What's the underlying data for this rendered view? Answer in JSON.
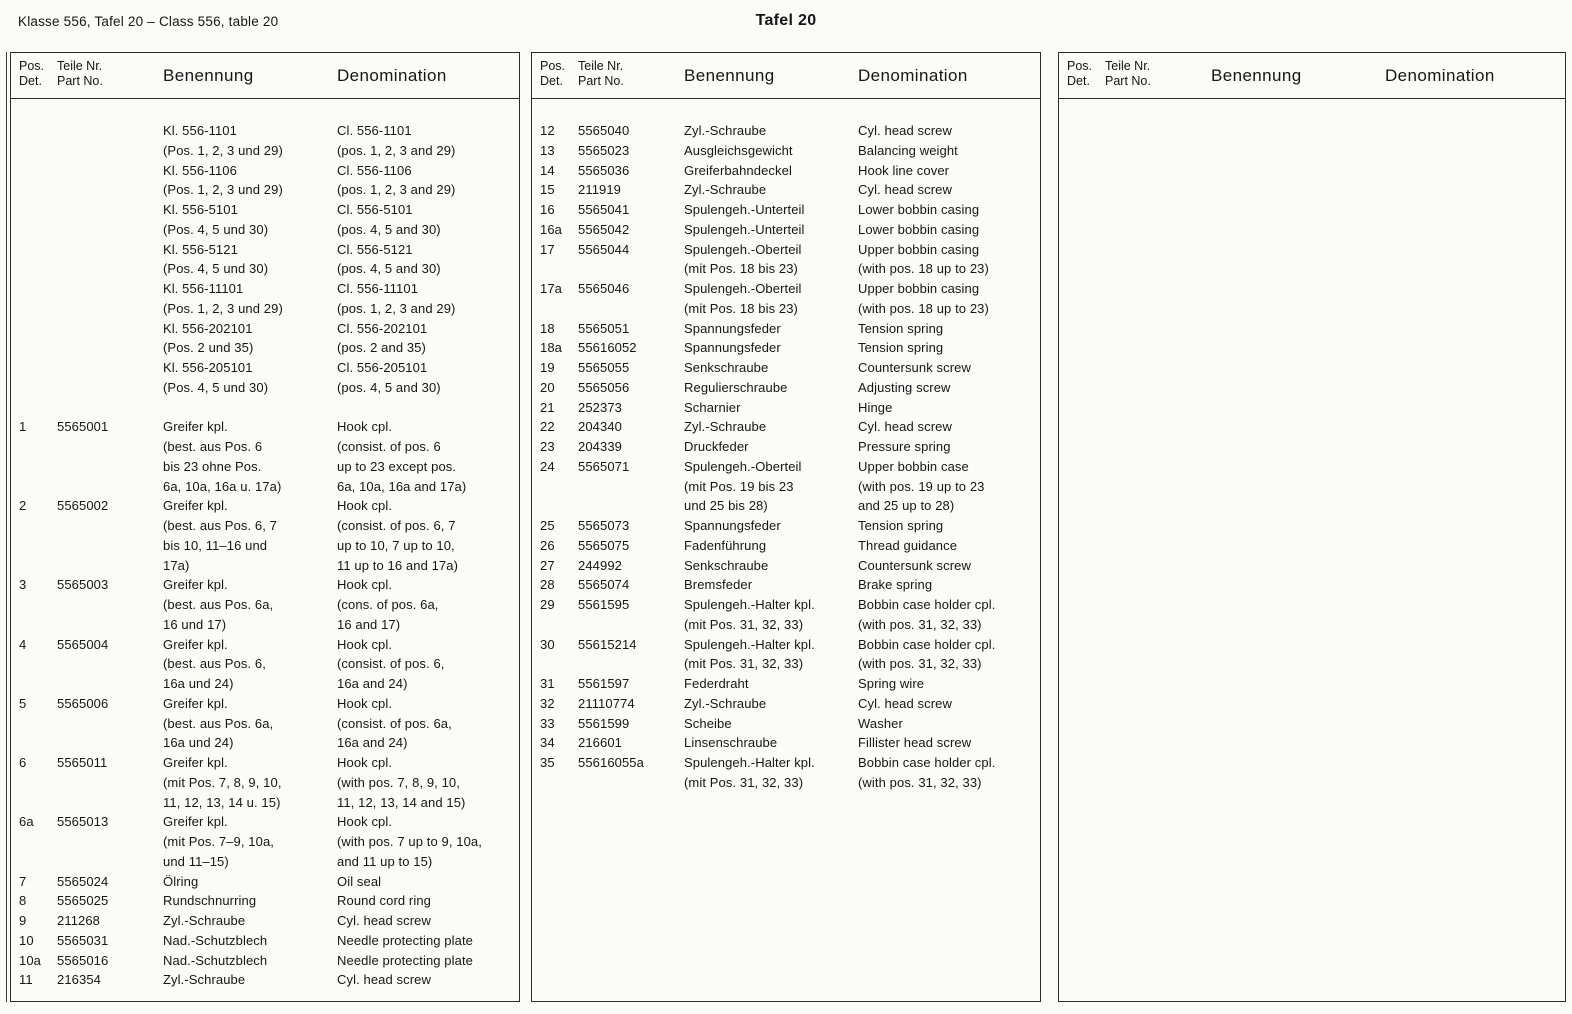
{
  "page": {
    "header_left": "Klasse 556, Tafel 20 – Class 556, table 20",
    "title": "Tafel 20"
  },
  "column_headers": {
    "pos": [
      "Pos.",
      "Det."
    ],
    "part": [
      "Teile Nr.",
      "Part No."
    ],
    "benennung": "Benennung",
    "denomination": "Denomination"
  },
  "panels": [
    {
      "rows": [
        [
          "",
          "",
          "Kl. 556-1101",
          "Cl. 556-1101"
        ],
        [
          "",
          "",
          "(Pos. 1, 2, 3 und 29)",
          "(pos. 1, 2, 3 and 29)"
        ],
        [
          "",
          "",
          "Kl. 556-1106",
          "Cl. 556-1106"
        ],
        [
          "",
          "",
          "(Pos. 1, 2, 3 und 29)",
          "(pos. 1, 2, 3 and 29)"
        ],
        [
          "",
          "",
          "Kl. 556-5101",
          "Cl. 556-5101"
        ],
        [
          "",
          "",
          "(Pos. 4, 5 und 30)",
          "(pos. 4, 5 and 30)"
        ],
        [
          "",
          "",
          "Kl. 556-5121",
          "Cl. 556-5121"
        ],
        [
          "",
          "",
          "(Pos. 4, 5 und 30)",
          "(pos. 4, 5 and 30)"
        ],
        [
          "",
          "",
          "Kl. 556-11101",
          "Cl. 556-11101"
        ],
        [
          "",
          "",
          "(Pos. 1, 2, 3 und 29)",
          "(pos. 1, 2, 3 and 29)"
        ],
        [
          "",
          "",
          "Kl. 556-202101",
          "Cl. 556-202101"
        ],
        [
          "",
          "",
          "(Pos. 2 und 35)",
          "(pos. 2 and 35)"
        ],
        [
          "",
          "",
          "Kl. 556-205101",
          "Cl. 556-205101"
        ],
        [
          "",
          "",
          "(Pos. 4, 5 und 30)",
          "(pos. 4, 5 and 30)"
        ],
        [
          "",
          "",
          "",
          ""
        ],
        [
          "1",
          "5565001",
          "Greifer kpl.",
          "Hook cpl."
        ],
        [
          "",
          "",
          "(best. aus Pos. 6",
          "(consist. of pos. 6"
        ],
        [
          "",
          "",
          "bis 23 ohne Pos.",
          "up to 23 except pos."
        ],
        [
          "",
          "",
          "6a, 10a, 16a u. 17a)",
          "6a, 10a, 16a and 17a)"
        ],
        [
          "2",
          "5565002",
          "Greifer kpl.",
          "Hook cpl."
        ],
        [
          "",
          "",
          "(best. aus Pos. 6, 7",
          "(consist. of pos. 6, 7"
        ],
        [
          "",
          "",
          "bis 10, 11–16 und",
          "up to 10, 7 up to 10,"
        ],
        [
          "",
          "",
          "17a)",
          "11 up to 16 and 17a)"
        ],
        [
          "3",
          "5565003",
          "Greifer kpl.",
          "Hook cpl."
        ],
        [
          "",
          "",
          "(best. aus Pos. 6a,",
          "(cons. of pos. 6a,"
        ],
        [
          "",
          "",
          "16 und 17)",
          "16 and 17)"
        ],
        [
          "4",
          "5565004",
          "Greifer kpl.",
          "Hook cpl."
        ],
        [
          "",
          "",
          "(best. aus Pos. 6,",
          "(consist. of pos. 6,"
        ],
        [
          "",
          "",
          "16a und 24)",
          "16a and 24)"
        ],
        [
          "5",
          "5565006",
          "Greifer kpl.",
          "Hook cpl."
        ],
        [
          "",
          "",
          "(best. aus Pos. 6a,",
          "(consist. of pos. 6a,"
        ],
        [
          "",
          "",
          "16a und 24)",
          "16a and 24)"
        ],
        [
          "6",
          "5565011",
          "Greifer kpl.",
          "Hook cpl."
        ],
        [
          "",
          "",
          "(mit Pos. 7, 8, 9, 10,",
          "(with pos. 7, 8, 9, 10,"
        ],
        [
          "",
          "",
          "11, 12, 13, 14 u. 15)",
          "11, 12, 13, 14 and 15)"
        ],
        [
          "6a",
          "5565013",
          "Greifer kpl.",
          "Hook cpl."
        ],
        [
          "",
          "",
          "(mit Pos. 7–9, 10a,",
          "(with pos. 7 up to 9, 10a,"
        ],
        [
          "",
          "",
          "und 11–15)",
          "and 11 up to 15)"
        ],
        [
          "7",
          "5565024",
          "Ölring",
          "Oil seal"
        ],
        [
          "8",
          "5565025",
          "Rundschnurring",
          "Round cord ring"
        ],
        [
          "9",
          "211268",
          "Zyl.-Schraube",
          "Cyl. head screw"
        ],
        [
          "10",
          "5565031",
          "Nad.-Schutzblech",
          "Needle protecting plate"
        ],
        [
          "10a",
          "5565016",
          "Nad.-Schutzblech",
          "Needle protecting plate"
        ],
        [
          "11",
          "216354",
          "Zyl.-Schraube",
          "Cyl. head screw"
        ]
      ]
    },
    {
      "rows": [
        [
          "12",
          "5565040",
          "Zyl.-Schraube",
          "Cyl. head screw"
        ],
        [
          "13",
          "5565023",
          "Ausgleichsgewicht",
          "Balancing weight"
        ],
        [
          "14",
          "5565036",
          "Greiferbahndeckel",
          "Hook line cover"
        ],
        [
          "15",
          "211919",
          "Zyl.-Schraube",
          "Cyl. head screw"
        ],
        [
          "16",
          "5565041",
          "Spulengeh.-Unterteil",
          "Lower bobbin casing"
        ],
        [
          "16a",
          "5565042",
          "Spulengeh.-Unterteil",
          "Lower bobbin casing"
        ],
        [
          "17",
          "5565044",
          "Spulengeh.-Oberteil",
          "Upper bobbin casing"
        ],
        [
          "",
          "",
          "(mit Pos. 18 bis 23)",
          "(with pos. 18 up to 23)"
        ],
        [
          "17a",
          "5565046",
          "Spulengeh.-Oberteil",
          "Upper bobbin casing"
        ],
        [
          "",
          "",
          "(mit Pos. 18 bis 23)",
          "(with pos. 18 up to 23)"
        ],
        [
          "18",
          "5565051",
          "Spannungsfeder",
          "Tension spring"
        ],
        [
          "18a",
          "55616052",
          "Spannungsfeder",
          "Tension spring"
        ],
        [
          "19",
          "5565055",
          "Senkschraube",
          "Countersunk screw"
        ],
        [
          "20",
          "5565056",
          "Regulierschraube",
          "Adjusting screw"
        ],
        [
          "21",
          "252373",
          "Scharnier",
          "Hinge"
        ],
        [
          "22",
          "204340",
          "Zyl.-Schraube",
          "Cyl. head screw"
        ],
        [
          "23",
          "204339",
          "Druckfeder",
          "Pressure spring"
        ],
        [
          "24",
          "5565071",
          "Spulengeh.-Oberteil",
          "Upper bobbin case"
        ],
        [
          "",
          "",
          "(mit Pos. 19 bis 23",
          "(with pos. 19 up to 23"
        ],
        [
          "",
          "",
          "und 25 bis 28)",
          "and 25 up to 28)"
        ],
        [
          "25",
          "5565073",
          "Spannungsfeder",
          "Tension spring"
        ],
        [
          "26",
          "5565075",
          "Fadenführung",
          "Thread guidance"
        ],
        [
          "27",
          "244992",
          "Senkschraube",
          "Countersunk screw"
        ],
        [
          "28",
          "5565074",
          "Bremsfeder",
          "Brake spring"
        ],
        [
          "29",
          "5561595",
          "Spulengeh.-Halter kpl.",
          "Bobbin case holder cpl."
        ],
        [
          "",
          "",
          "(mit Pos. 31, 32, 33)",
          "(with pos. 31, 32, 33)"
        ],
        [
          "30",
          "55615214",
          "Spulengeh.-Halter kpl.",
          "Bobbin case holder cpl."
        ],
        [
          "",
          "",
          "(mit Pos. 31, 32, 33)",
          "(with pos. 31, 32, 33)"
        ],
        [
          "31",
          "5561597",
          "Federdraht",
          "Spring wire"
        ],
        [
          "32",
          "21110774",
          "Zyl.-Schraube",
          "Cyl. head screw"
        ],
        [
          "33",
          "5561599",
          "Scheibe",
          "Washer"
        ],
        [
          "34",
          "216601",
          "Linsenschraube",
          "Fillister head screw"
        ],
        [
          "35",
          "55616055a",
          "Spulengeh.-Halter kpl.",
          "Bobbin case holder cpl."
        ],
        [
          "",
          "",
          "(mit Pos. 31, 32, 33)",
          "(with pos. 31, 32, 33)"
        ]
      ]
    },
    {
      "rows": []
    }
  ]
}
